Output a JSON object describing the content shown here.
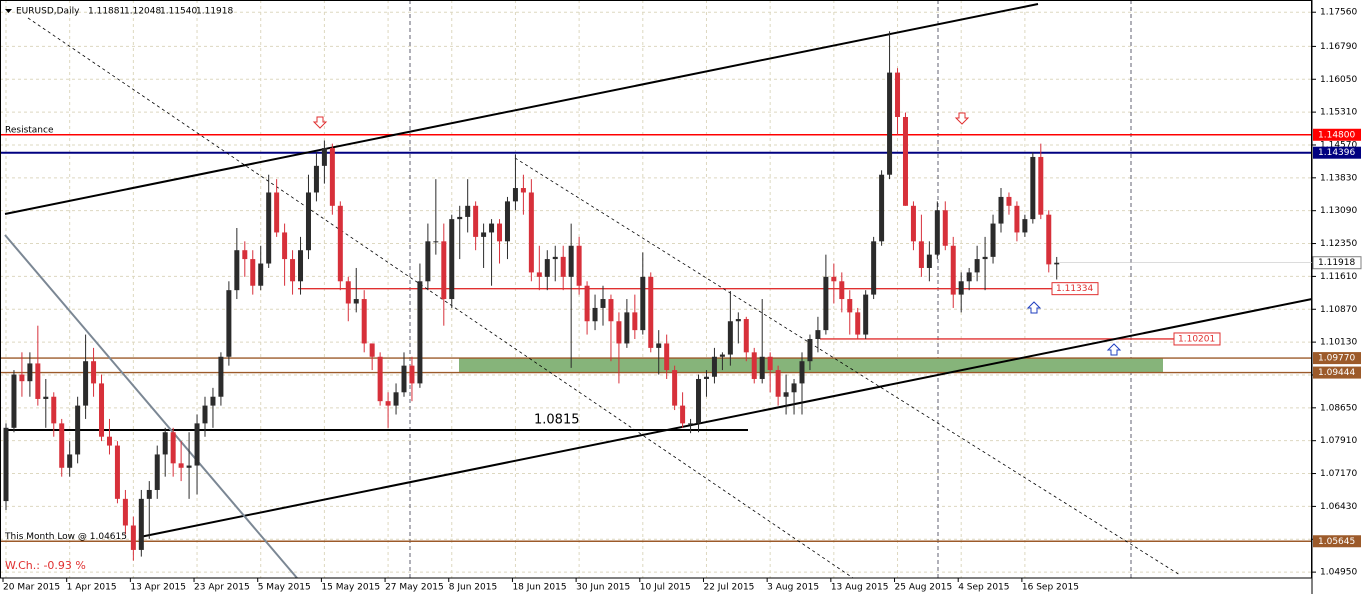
{
  "chart_data": {
    "type": "candlestick",
    "title": "EURUSD,Daily",
    "last_bar_labels": [
      "1.11881",
      "1.12048",
      "1.11540",
      "1.11918"
    ],
    "annotation": "W.Ch.: -0.93 %",
    "categories": [
      "20 Mar 2015",
      null,
      null,
      null,
      null,
      null,
      null,
      null,
      "1 Apr 2015",
      null,
      null,
      null,
      null,
      null,
      null,
      null,
      "13 Apr 2015",
      null,
      null,
      null,
      null,
      null,
      null,
      null,
      "23 Apr 2015",
      null,
      null,
      null,
      null,
      null,
      null,
      null,
      "5 May 2015",
      null,
      null,
      null,
      null,
      null,
      null,
      null,
      "15 May 2015",
      null,
      null,
      null,
      null,
      null,
      null,
      null,
      "27 May 2015",
      null,
      null,
      null,
      null,
      null,
      null,
      null,
      "8 Jun 2015",
      null,
      null,
      null,
      null,
      null,
      null,
      null,
      "18 Jun 2015",
      null,
      null,
      null,
      null,
      null,
      null,
      null,
      "30 Jun 2015",
      null,
      null,
      null,
      null,
      null,
      null,
      null,
      "10 Jul 2015",
      null,
      null,
      null,
      null,
      null,
      null,
      null,
      "22 Jul 2015",
      null,
      null,
      null,
      null,
      null,
      null,
      null,
      "3 Aug 2015",
      null,
      null,
      null,
      null,
      null,
      null,
      null,
      "13 Aug 2015",
      null,
      null,
      null,
      null,
      null,
      null,
      null,
      "25 Aug 2015",
      null,
      null,
      null,
      null,
      null,
      null,
      null,
      "4 Sep 2015",
      null,
      null,
      null,
      null,
      null,
      null,
      null,
      "16 Sep 2015",
      null,
      null,
      null,
      null
    ],
    "open": [
      1.0655,
      1.082,
      1.094,
      1.0925,
      1.0965,
      1.0885,
      1.089,
      1.083,
      1.073,
      1.076,
      1.087,
      1.097,
      1.092,
      1.08,
      1.078,
      1.066,
      1.06,
      1.0545,
      1.066,
      1.068,
      1.076,
      1.081,
      1.074,
      1.073,
      1.0735,
      1.083,
      1.087,
      1.089,
      1.098,
      1.113,
      1.122,
      1.12,
      1.114,
      1.119,
      1.135,
      1.126,
      1.12,
      1.115,
      1.122,
      1.135,
      1.141,
      1.145,
      1.132,
      1.115,
      1.11,
      1.111,
      1.101,
      1.098,
      1.088,
      1.087,
      1.09,
      1.096,
      1.092,
      1.115,
      1.124,
      1.124,
      1.111,
      1.129,
      1.1295,
      1.132,
      1.125,
      1.126,
      1.128,
      1.124,
      1.133,
      1.136,
      1.135,
      1.117,
      1.116,
      1.12,
      1.1205,
      1.116,
      1.123,
      1.114,
      1.106,
      1.109,
      1.111,
      1.106,
      1.101,
      1.108,
      1.104,
      1.116,
      1.1,
      1.101,
      1.095,
      1.087,
      1.083,
      1.083,
      1.093,
      1.0935,
      1.098,
      1.0985,
      1.106,
      1.1065,
      1.099,
      1.093,
      1.098,
      1.095,
      1.089,
      1.09,
      1.092,
      1.097,
      1.102,
      1.104,
      1.116,
      1.115,
      1.111,
      1.108,
      1.103,
      1.112,
      1.124,
      1.139,
      1.162,
      1.152,
      1.132,
      1.124,
      1.118,
      1.121,
      1.131,
      1.123,
      1.112,
      1.115,
      1.117,
      1.12,
      1.1205,
      1.128,
      1.134,
      1.132,
      1.126,
      1.129,
      1.143,
      1.13,
      1.11881
    ],
    "high": [
      1.083,
      1.095,
      1.099,
      1.099,
      1.105,
      1.093,
      1.09,
      1.084,
      1.079,
      1.089,
      1.103,
      1.1,
      1.094,
      1.084,
      1.079,
      1.068,
      1.062,
      1.068,
      1.07,
      1.078,
      1.082,
      1.082,
      1.079,
      1.081,
      1.085,
      1.089,
      1.091,
      1.099,
      1.115,
      1.127,
      1.124,
      1.122,
      1.123,
      1.139,
      1.138,
      1.128,
      1.122,
      1.125,
      1.139,
      1.144,
      1.1467,
      1.146,
      1.133,
      1.116,
      1.118,
      1.113,
      1.101,
      1.099,
      1.09,
      1.092,
      1.099,
      1.098,
      1.119,
      1.128,
      1.138,
      1.128,
      1.13,
      1.132,
      1.138,
      1.133,
      1.128,
      1.129,
      1.129,
      1.134,
      1.1436,
      1.139,
      1.138,
      1.123,
      1.122,
      1.123,
      1.123,
      1.128,
      1.125,
      1.115,
      1.112,
      1.114,
      1.112,
      1.108,
      1.111,
      1.112,
      1.1215,
      1.117,
      1.104,
      1.103,
      1.096,
      1.09,
      1.084,
      1.094,
      1.095,
      1.1,
      1.099,
      1.1128,
      1.108,
      1.107,
      1.1,
      1.111,
      1.099,
      1.096,
      1.094,
      1.093,
      1.099,
      1.103,
      1.107,
      1.121,
      1.119,
      1.117,
      1.113,
      1.109,
      1.113,
      1.125,
      1.14,
      1.1713,
      1.163,
      1.153,
      1.133,
      1.13,
      1.124,
      1.133,
      1.133,
      1.125,
      1.117,
      1.118,
      1.123,
      1.125,
      1.13,
      1.136,
      1.135,
      1.133,
      1.13,
      1.144,
      1.146,
      1.131,
      1.12048
    ],
    "low": [
      1.0635,
      1.081,
      1.089,
      1.089,
      1.087,
      1.082,
      1.08,
      1.071,
      1.071,
      1.074,
      1.084,
      1.089,
      1.079,
      1.076,
      1.065,
      1.058,
      1.0521,
      1.053,
      1.057,
      1.066,
      1.071,
      1.071,
      1.07,
      1.066,
      1.067,
      1.08,
      1.082,
      1.087,
      1.096,
      1.111,
      1.116,
      1.112,
      1.113,
      1.118,
      1.125,
      1.114,
      1.112,
      1.112,
      1.12,
      1.133,
      1.137,
      1.13,
      1.113,
      1.106,
      1.108,
      1.099,
      1.095,
      1.087,
      1.082,
      1.085,
      1.089,
      1.088,
      1.091,
      1.113,
      1.121,
      1.105,
      1.109,
      1.12,
      1.126,
      1.122,
      1.118,
      1.114,
      1.119,
      1.12,
      1.131,
      1.13,
      1.115,
      1.113,
      1.113,
      1.115,
      1.113,
      1.0955,
      1.112,
      1.103,
      1.104,
      1.105,
      1.097,
      1.092,
      1.1,
      1.102,
      1.103,
      1.099,
      1.094,
      1.093,
      1.086,
      1.082,
      1.0808,
      1.081,
      1.089,
      1.092,
      1.095,
      1.096,
      1.101,
      1.097,
      1.092,
      1.092,
      1.09,
      1.087,
      1.085,
      1.085,
      1.085,
      1.095,
      1.099,
      1.103,
      1.11,
      1.108,
      1.103,
      1.102,
      1.102,
      1.111,
      1.123,
      1.138,
      1.148,
      1.132,
      1.122,
      1.116,
      1.115,
      1.12,
      1.122,
      1.109,
      1.108,
      1.113,
      1.115,
      1.113,
      1.119,
      1.126,
      1.13,
      1.124,
      1.125,
      1.128,
      1.129,
      1.117,
      1.1154
    ],
    "close": [
      1.082,
      1.094,
      1.0925,
      1.0965,
      1.0885,
      1.089,
      1.083,
      1.073,
      1.076,
      1.087,
      1.097,
      1.092,
      1.08,
      1.078,
      1.066,
      1.06,
      1.0545,
      1.066,
      1.068,
      1.076,
      1.081,
      1.074,
      1.073,
      1.0735,
      1.083,
      1.087,
      1.089,
      1.098,
      1.113,
      1.122,
      1.12,
      1.114,
      1.119,
      1.135,
      1.126,
      1.12,
      1.115,
      1.122,
      1.135,
      1.141,
      1.145,
      1.132,
      1.115,
      1.11,
      1.111,
      1.101,
      1.098,
      1.088,
      1.087,
      1.09,
      1.096,
      1.092,
      1.115,
      1.124,
      1.124,
      1.111,
      1.129,
      1.1295,
      1.132,
      1.125,
      1.126,
      1.128,
      1.124,
      1.133,
      1.136,
      1.135,
      1.117,
      1.116,
      1.12,
      1.1205,
      1.116,
      1.123,
      1.114,
      1.106,
      1.109,
      1.111,
      1.106,
      1.101,
      1.108,
      1.104,
      1.116,
      1.1,
      1.101,
      1.095,
      1.087,
      1.083,
      1.083,
      1.093,
      1.0935,
      1.098,
      1.0985,
      1.106,
      1.1065,
      1.099,
      1.093,
      1.098,
      1.095,
      1.089,
      1.09,
      1.092,
      1.097,
      1.102,
      1.104,
      1.116,
      1.115,
      1.111,
      1.108,
      1.103,
      1.112,
      1.124,
      1.139,
      1.162,
      1.152,
      1.132,
      1.124,
      1.118,
      1.121,
      1.131,
      1.123,
      1.112,
      1.115,
      1.117,
      1.12,
      1.1205,
      1.128,
      1.134,
      1.132,
      1.126,
      1.129,
      1.143,
      1.13,
      1.11881,
      1.11918
    ],
    "up_color": "#2b2b2b",
    "down_color": "#d7303a",
    "ylim": [
      1.0484,
      1.1779
    ],
    "yticks": [
      {
        "value": 1.1756,
        "label": "1.17560"
      },
      {
        "value": 1.1679,
        "label": "1.16790"
      },
      {
        "value": 1.1605,
        "label": "1.16050"
      },
      {
        "value": 1.1531,
        "label": "1.15310"
      },
      {
        "value": 1.1457,
        "label": "1.14570"
      },
      {
        "value": 1.1383,
        "label": "1.13830"
      },
      {
        "value": 1.1309,
        "label": "1.13090"
      },
      {
        "value": 1.1235,
        "label": "1.12350"
      },
      {
        "value": 1.1161,
        "label": "1.11610"
      },
      {
        "value": 1.1087,
        "label": "1.10870"
      },
      {
        "value": 1.1013,
        "label": "1.10130"
      },
      {
        "value": 1.0939,
        "label": "1.09390"
      },
      {
        "value": 1.0865,
        "label": "1.08650"
      },
      {
        "value": 1.0791,
        "label": "1.07910"
      },
      {
        "value": 1.0717,
        "label": "1.07170"
      },
      {
        "value": 1.0643,
        "label": "1.06430"
      },
      {
        "value": 1.0569,
        "label": "1.05690"
      },
      {
        "value": 1.0495,
        "label": "1.04950"
      }
    ],
    "grid": true,
    "levels": [
      {
        "value": 1.148,
        "label": "1.14800",
        "color": "#ff0000",
        "tag": "axis",
        "note": "Resistance"
      },
      {
        "value": 1.14396,
        "color": "#000080",
        "tag": "axis"
      },
      {
        "value": 1.11334,
        "color": "#e03030",
        "tag": "box"
      },
      {
        "value": 1.10201,
        "color": "#e03030",
        "tag": "box"
      },
      {
        "value": 1.0977,
        "label": "1.09770",
        "color": "#9c5a2a",
        "tag": "axis",
        "zone": true
      },
      {
        "value": 1.09444,
        "color": "#9c5a2a",
        "tag": "axis",
        "zone": true
      },
      {
        "value": 1.05645,
        "color": "#9c5a2a",
        "tag": "axis",
        "note": "This Month Low @ 1.04615"
      },
      {
        "value": 1.0815,
        "color": "#000000",
        "tag": "text"
      }
    ],
    "zone_color": "#86b47a"
  }
}
